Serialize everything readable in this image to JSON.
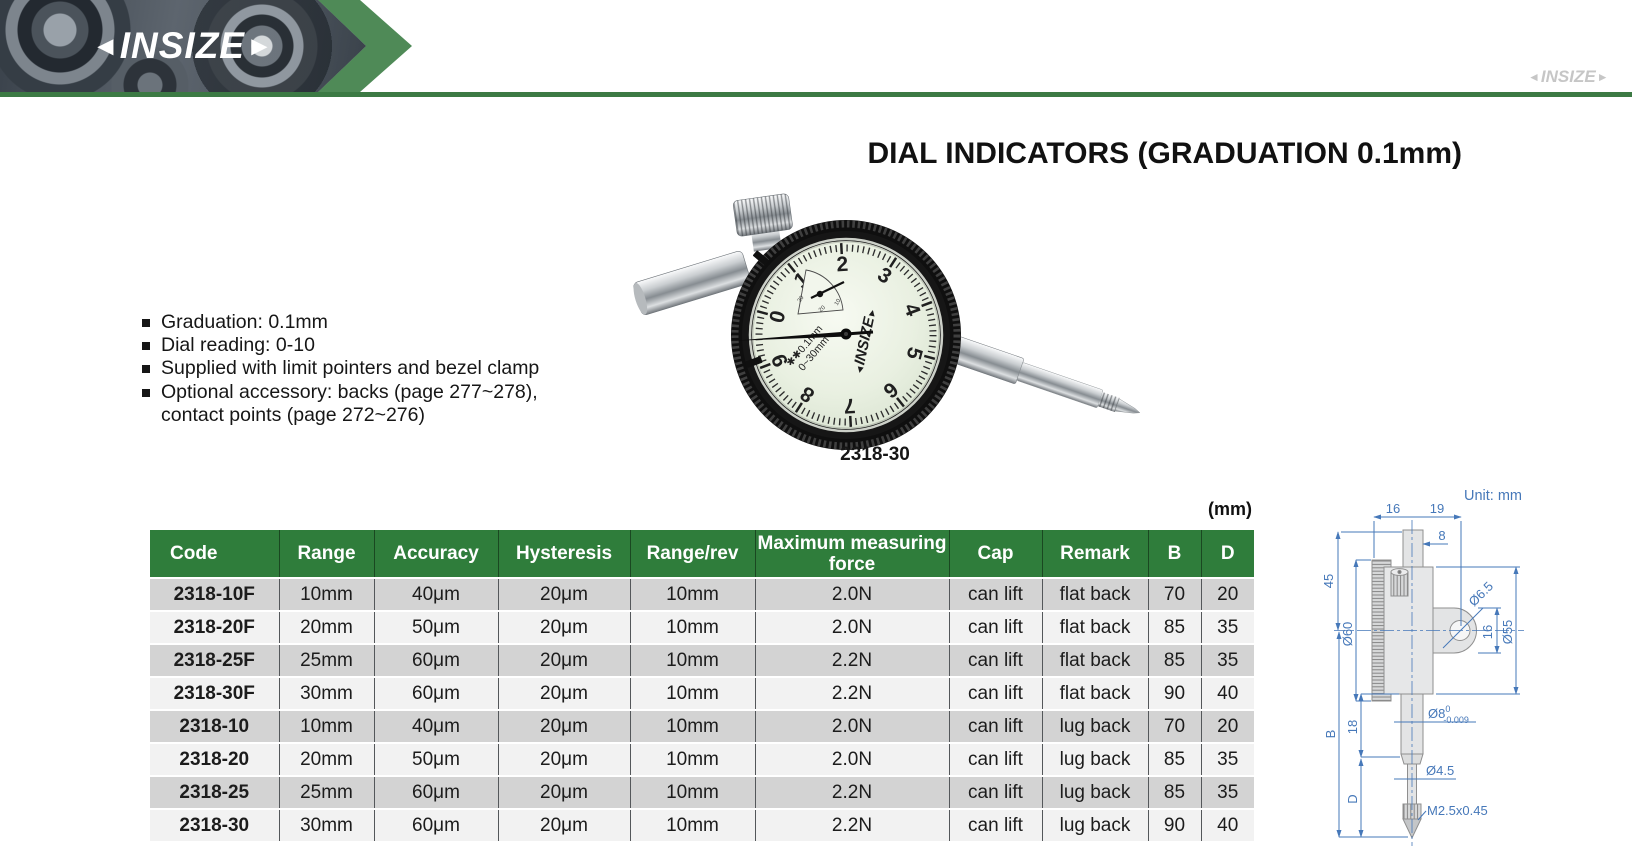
{
  "header": {
    "logo_text": "INSIZE",
    "logo_left_arrow": "◄",
    "logo_right_arrow": "►",
    "watermark_text": "INSIZE"
  },
  "title": "DIAL INDICATORS (GRADUATION 0.1mm)",
  "features": {
    "items": [
      "Graduation: 0.1mm",
      "Dial reading: 0-10",
      "Supplied with limit pointers and bezel clamp",
      "Optional accessory: backs (page 277~278),",
      "contact points (page 272~276)"
    ]
  },
  "product": {
    "label": "2318-30",
    "dial_numbers": [
      "0",
      "1",
      "2",
      "3",
      "4",
      "5",
      "6",
      "7",
      "8",
      "9"
    ],
    "subdial_labels": [
      "30",
      "20",
      "10"
    ],
    "face_stars": "✱✱",
    "face_line1": "0.1mm",
    "face_line2": "0~30mm",
    "face_logo": "INSIZE"
  },
  "table": {
    "unit_label": "(mm)",
    "headers": [
      "Code",
      "Range",
      "Accuracy",
      "Hysteresis",
      "Range/rev",
      "Maximum measuring force",
      "Cap",
      "Remark",
      "B",
      "D"
    ],
    "rows": [
      [
        "2318-10F",
        "10mm",
        "40μm",
        "20μm",
        "10mm",
        "2.0N",
        "can lift",
        "flat back",
        "70",
        "20"
      ],
      [
        "2318-20F",
        "20mm",
        "50μm",
        "20μm",
        "10mm",
        "2.0N",
        "can lift",
        "flat back",
        "85",
        "35"
      ],
      [
        "2318-25F",
        "25mm",
        "60μm",
        "20μm",
        "10mm",
        "2.2N",
        "can lift",
        "flat back",
        "85",
        "35"
      ],
      [
        "2318-30F",
        "30mm",
        "60μm",
        "20μm",
        "10mm",
        "2.2N",
        "can lift",
        "flat back",
        "90",
        "40"
      ],
      [
        "2318-10",
        "10mm",
        "40μm",
        "20μm",
        "10mm",
        "2.0N",
        "can lift",
        "lug back",
        "70",
        "20"
      ],
      [
        "2318-20",
        "20mm",
        "50μm",
        "20μm",
        "10mm",
        "2.0N",
        "can lift",
        "lug back",
        "85",
        "35"
      ],
      [
        "2318-25",
        "25mm",
        "60μm",
        "20μm",
        "10mm",
        "2.2N",
        "can lift",
        "lug back",
        "85",
        "35"
      ],
      [
        "2318-30",
        "30mm",
        "60μm",
        "20μm",
        "10mm",
        "2.2N",
        "can lift",
        "lug back",
        "90",
        "40"
      ]
    ]
  },
  "drawing": {
    "unit_label": "Unit: mm",
    "dim_16_top": "16",
    "dim_19": "19",
    "dim_8": "8",
    "dim_45": "45",
    "dim_d60": "Ø60",
    "dim_d65": "Ø6.5",
    "dim_16_lug": "16",
    "dim_d55": "Ø55",
    "dim_B": "B",
    "dim_18": "18",
    "dim_d8": "Ø8",
    "dim_d8_sup": "0",
    "dim_d8_sub": "-0.009",
    "dim_d45": "Ø4.5",
    "dim_D": "D",
    "dim_thread": "M2.5x0.45"
  },
  "colors": {
    "table_green": "#2f7d3b",
    "banner_green": "#4f8a57",
    "rule_green": "#3c7a44",
    "dimension_blue": "#4678b9",
    "row_dark": "#d3d3d3",
    "row_light": "#f2f2f2"
  }
}
